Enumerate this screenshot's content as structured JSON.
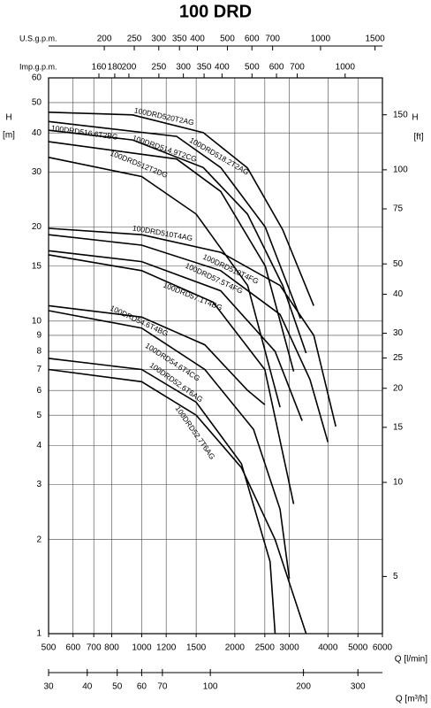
{
  "chart_data": {
    "type": "line",
    "title": "100 DRD",
    "xscale": "log",
    "yscale": "log",
    "grid": true,
    "xlabel": "Q [l/min]",
    "ylabel": "H",
    "ylabel_unit": "[m]",
    "xlim": [
      500,
      6000
    ],
    "xticks": [
      500,
      600,
      700,
      800,
      1000,
      1200,
      1500,
      2000,
      2500,
      3000,
      4000,
      5000,
      6000
    ],
    "ylim": [
      1,
      60
    ],
    "yticks": [
      1,
      2,
      3,
      4,
      5,
      6,
      7,
      8,
      9,
      10,
      15,
      20,
      30,
      40,
      50,
      60
    ],
    "y2label": "H",
    "y2label_unit": "[ft]",
    "y2lim": [
      3.281,
      196.86
    ],
    "y2ticks": [
      5,
      10,
      15,
      20,
      25,
      30,
      40,
      50,
      75,
      100,
      150
    ],
    "x2label": "U.S.g.p.m.",
    "x2lim": [
      132.1,
      1585.2
    ],
    "x2ticks": [
      200,
      250,
      300,
      350,
      400,
      500,
      600,
      700,
      1000,
      1500
    ],
    "x3label": "Imp.g.p.m.",
    "x3lim": [
      110,
      1320
    ],
    "x3ticks": [
      160,
      180,
      200,
      250,
      300,
      350,
      400,
      500,
      600,
      700,
      1000
    ],
    "x4label": "Q [m³/h]",
    "x4lim": [
      30,
      360
    ],
    "x4ticks": [
      30,
      40,
      50,
      60,
      70,
      100,
      200,
      300
    ],
    "series": [
      {
        "name": "100DRD520T2AG",
        "color": "#000000",
        "x": [
          500,
          934,
          1581,
          2197,
          2857,
          3597
        ],
        "values": [
          46.6,
          45.7,
          40.1,
          30.9,
          19.6,
          11.2
        ]
      },
      {
        "name": "100DRD516.6T2BG",
        "color": "#000000",
        "x": [
          500,
          934,
          1581,
          2197,
          2857,
          3400
        ],
        "values": [
          40.8,
          38,
          31,
          22,
          13,
          7.9
        ]
      },
      {
        "name": "100DRD518.2T2AG",
        "color": "#000000",
        "x": [
          500,
          1297,
          1800,
          2507,
          3260
        ],
        "values": [
          43.5,
          39,
          31,
          20,
          10.2
        ]
      },
      {
        "name": "100DRD514.9T2CG",
        "color": "#000000",
        "x": [
          500,
          1297,
          1800,
          2507,
          3100
        ],
        "values": [
          37.5,
          33,
          26,
          15,
          6.9
        ]
      },
      {
        "name": "100DRD512T2DG",
        "color": "#000000",
        "x": [
          500,
          1000,
          1500,
          2200,
          2800
        ],
        "values": [
          33.4,
          29,
          22,
          13,
          5.3
        ]
      },
      {
        "name": "100DRD510T4AG",
        "color": "#000000",
        "x": [
          500,
          1000,
          1800,
          2800,
          3600,
          4240
        ],
        "values": [
          19.8,
          18.9,
          16.6,
          13,
          9,
          4.6
        ]
      },
      {
        "name": "100DRD510T4FG",
        "color": "#000000",
        "x": [
          500,
          1000,
          1800,
          2800,
          3500,
          4000
        ],
        "values": [
          18.9,
          17.5,
          14.5,
          10.5,
          6.5,
          4.1
        ]
      },
      {
        "name": "100DRD57.5T4FG",
        "color": "#000000",
        "x": [
          500,
          1000,
          1800,
          2700,
          3300
        ],
        "values": [
          16.8,
          15.5,
          12.5,
          8,
          4.8
        ]
      },
      {
        "name": "100DRD57.1T4BG",
        "color": "#000000",
        "x": [
          500,
          1000,
          1700,
          2500,
          3100
        ],
        "values": [
          16.3,
          14.5,
          11.5,
          7,
          2.6
        ]
      },
      {
        "name": "100DRD54.6T4BG",
        "color": "#000000",
        "x": [
          500,
          1000,
          1600,
          2200,
          2500
        ],
        "values": [
          11.2,
          10.3,
          8.4,
          6,
          5.4
        ]
      },
      {
        "name": "100DRD54.6T4CG",
        "color": "#000000",
        "x": [
          500,
          1000,
          1600,
          2300,
          2800,
          3000
        ],
        "values": [
          10.8,
          9.5,
          7,
          4.5,
          2.5,
          1.5
        ]
      },
      {
        "name": "100DRD52.6T6AG",
        "color": "#000000",
        "x": [
          500,
          1000,
          1500,
          2100,
          2600,
          2700
        ],
        "values": [
          7.6,
          7,
          5.5,
          3.5,
          1.7,
          1.0
        ]
      },
      {
        "name": "100DRD52.7T6AG",
        "color": "#000000",
        "x": [
          500,
          1000,
          1500,
          2100,
          2700,
          3400
        ],
        "values": [
          7.0,
          6.4,
          5,
          3.4,
          2,
          1.0
        ]
      }
    ]
  }
}
